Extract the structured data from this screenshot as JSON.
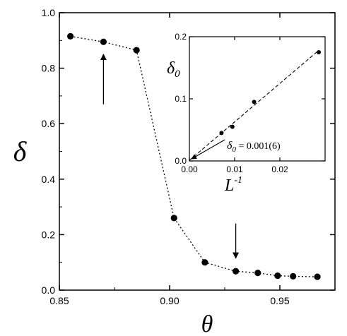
{
  "chart_data": [
    {
      "type": "line",
      "title": "",
      "xlabel": "θ",
      "ylabel": "δ",
      "xlim": [
        0.85,
        0.975
      ],
      "ylim": [
        0.0,
        1.0
      ],
      "xticks": [
        "0.85",
        "0.90",
        "0.95"
      ],
      "yticks": [
        "0.0",
        "0.2",
        "0.4",
        "0.6",
        "0.8",
        "1.0"
      ],
      "grid": false,
      "line_style": "dotted",
      "series": [
        {
          "x": [
            0.855,
            0.87,
            0.885,
            0.902,
            0.916,
            0.93,
            0.94,
            0.949,
            0.956,
            0.967
          ],
          "y": [
            0.915,
            0.895,
            0.865,
            0.26,
            0.1,
            0.068,
            0.062,
            0.052,
            0.05,
            0.048
          ]
        }
      ],
      "arrows": [
        {
          "x": 0.87,
          "y_from": 0.67,
          "y_to": 0.85,
          "direction": "up"
        },
        {
          "x": 0.93,
          "y_from": 0.24,
          "y_to": 0.115,
          "direction": "down"
        }
      ]
    },
    {
      "type": "scatter",
      "title": "",
      "xlabel": "L",
      "xlabel_sup": "-1",
      "ylabel": "δ",
      "ylabel_sub": "0",
      "xlim": [
        0.0,
        0.03
      ],
      "ylim": [
        0.0,
        0.2
      ],
      "xticks": [
        "0.00",
        "0.01",
        "0.02"
      ],
      "yticks": [
        "0.0",
        "0.1",
        "0.2"
      ],
      "grid": false,
      "series": [
        {
          "x": [
            0.0071,
            0.0095,
            0.0143,
            0.0286
          ],
          "y": [
            0.045,
            0.055,
            0.095,
            0.175
          ]
        }
      ],
      "fit_line": {
        "style": "dashed",
        "x": [
          0.0,
          0.0286
        ],
        "y": [
          0.001,
          0.178
        ]
      },
      "annotation": {
        "text_prefix": "δ",
        "text_sub": "0",
        "text_suffix": " = 0.001(6)",
        "arrow_to": [
          0.0,
          0.001
        ]
      }
    }
  ]
}
